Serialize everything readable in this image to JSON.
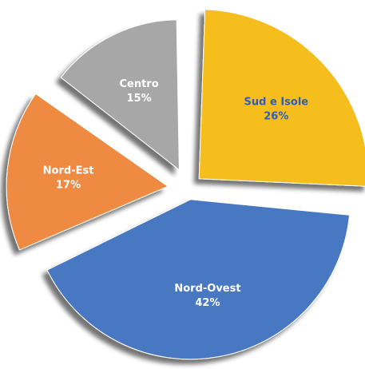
{
  "chart_data": {
    "type": "pie",
    "title": "",
    "legend": "none",
    "slices": [
      {
        "name": "Sud e Isole",
        "value": 26,
        "label": "26%",
        "color": "#F6BE1A",
        "text_color": "#2F5FAE"
      },
      {
        "name": "Nord-Ovest",
        "value": 42,
        "label": "42%",
        "color": "#4A78C2",
        "text_color": "#FFFFFF"
      },
      {
        "name": "Nord-Est",
        "value": 17,
        "label": "17%",
        "color": "#EE8A42",
        "text_color": "#FFFFFF"
      },
      {
        "name": "Centro",
        "value": 15,
        "label": "15%",
        "color": "#A7A7A7",
        "text_color": "#FFFFFF"
      }
    ]
  }
}
